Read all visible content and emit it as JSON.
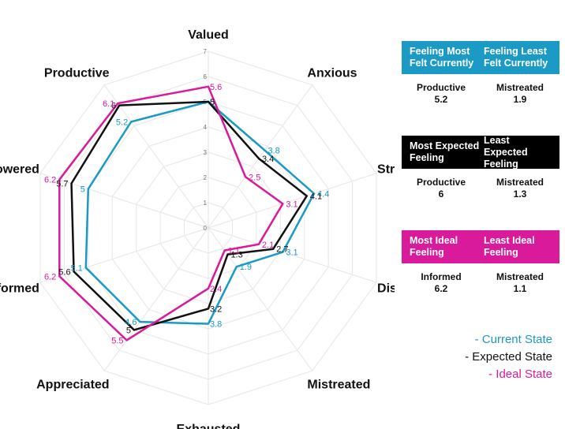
{
  "chart_data": {
    "type": "radar",
    "axes": [
      "Valued",
      "Anxious",
      "Stressed",
      "Disorganised",
      "Mistreated",
      "Exhausted",
      "Appreciated",
      "Informed",
      "Empowered",
      "Productive"
    ],
    "range": [
      0,
      7
    ],
    "ticks": [
      "0",
      "1",
      "2",
      "3",
      "4",
      "5",
      "6",
      "7"
    ],
    "grid": true,
    "series": [
      {
        "name": "Current State",
        "color": "#1a9ac4",
        "values": [
          5,
          3.8,
          4.4,
          3.1,
          1.9,
          3.8,
          4.6,
          5.1,
          5,
          5.2
        ],
        "labels": [
          "5",
          "3.8",
          "4.4",
          "3.1",
          "1.9",
          "3.8",
          "4.6",
          "5.1",
          "5",
          "5.2"
        ]
      },
      {
        "name": "Expected State",
        "color": "#111111",
        "values": [
          5,
          3.4,
          4.1,
          2.7,
          1.3,
          3.2,
          5,
          5.6,
          5.7,
          6
        ],
        "labels": [
          "5",
          "3.4",
          "4.1",
          "2.7",
          "1.3",
          "3.2",
          "5",
          "5.6",
          "5.7",
          "6"
        ]
      },
      {
        "name": "Ideal State",
        "color": "#d91a9a",
        "values": [
          5.6,
          2.5,
          3.1,
          2.1,
          1.1,
          2.4,
          5.5,
          6.2,
          6.2,
          6.1
        ],
        "labels": [
          "5.6",
          "2.5",
          "3.1",
          "2.1",
          "1.1",
          "2.4",
          "5.5",
          "6.2",
          "6.2",
          "6.1"
        ]
      }
    ]
  },
  "panels": [
    {
      "id": "current",
      "color": "#1a9ac4",
      "head_left": "Feeling Most Felt Currently",
      "head_right": "Feeling Least Felt Currently",
      "left_name": "Productive",
      "left_value": "5.2",
      "right_name": "Mistreated",
      "right_value": "1.9"
    },
    {
      "id": "expected",
      "color": "#000000",
      "head_left": "Most Expected Feeling",
      "head_right": "Least Expected Feeling",
      "left_name": "Productive",
      "left_value": "6",
      "right_name": "Mistreated",
      "right_value": "1.3"
    },
    {
      "id": "ideal",
      "color": "#d91a9a",
      "head_left": "Most Ideal Feeling",
      "head_right": "Least Ideal Feeling",
      "left_name": "Informed",
      "left_value": "6.2",
      "right_name": "Mistreated",
      "right_value": "1.1"
    }
  ],
  "legend": {
    "current": "- Current State",
    "expected": "- Expected State",
    "ideal": "- Ideal State"
  }
}
